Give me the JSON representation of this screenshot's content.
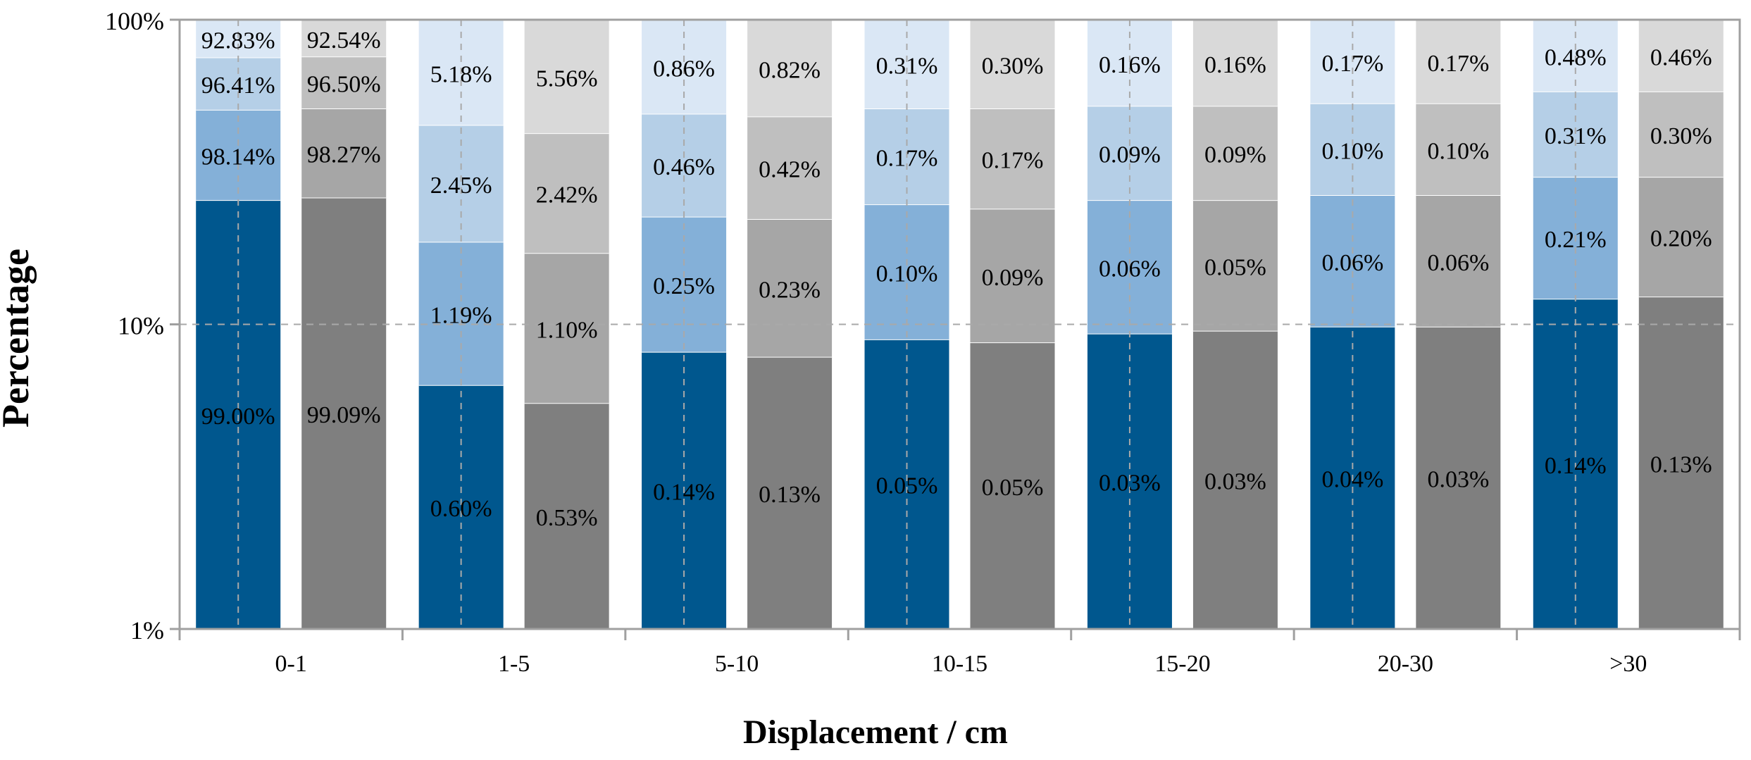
{
  "chart_data": {
    "type": "bar",
    "stacked": true,
    "yscale": "log",
    "ylim": [
      "1%",
      "100%"
    ],
    "ylabel": "Percentage",
    "xlabel": "Displacement / cm",
    "y_ticks": [
      "1%",
      "10%",
      "100%"
    ],
    "grid": "dashed vertical lines at bar centers; dashed line at 10%",
    "legend": "none",
    "categories": [
      "0-1",
      "1-5",
      "5-10",
      "10-15",
      "15-20",
      "20-30",
      ">30"
    ],
    "groups": [
      {
        "category": "0-1",
        "bars": [
          {
            "palette": "blue",
            "tops": [
              25.5,
              50.5,
              75,
              99.5
            ],
            "labels": [
              "99.00%",
              "98.14%",
              "96.41%",
              "92.83%"
            ]
          },
          {
            "palette": "gray",
            "tops": [
              26,
              51,
              75.5,
              99.5
            ],
            "labels": [
              "99.09%",
              "98.27%",
              "96.50%",
              "92.54%"
            ]
          }
        ]
      },
      {
        "category": "1-5",
        "bars": [
          {
            "palette": "blue",
            "tops": [
              6.3,
              18.6,
              45,
              99.5
            ],
            "labels": [
              "0.60%",
              "1.19%",
              "2.45%",
              "5.18%"
            ]
          },
          {
            "palette": "gray",
            "tops": [
              5.5,
              17.1,
              42.3,
              99.5
            ],
            "labels": [
              "0.53%",
              "1.10%",
              "2.42%",
              "5.56%"
            ]
          }
        ]
      },
      {
        "category": "5-10",
        "bars": [
          {
            "palette": "blue",
            "tops": [
              8.1,
              22.5,
              49,
              99.5
            ],
            "labels": [
              "0.14%",
              "0.25%",
              "0.46%",
              "0.86%"
            ]
          },
          {
            "palette": "gray",
            "tops": [
              7.8,
              22.1,
              48,
              99.5
            ],
            "labels": [
              "0.13%",
              "0.23%",
              "0.42%",
              "0.82%"
            ]
          }
        ]
      },
      {
        "category": "10-15",
        "bars": [
          {
            "palette": "blue",
            "tops": [
              8.9,
              24.7,
              51,
              99.5
            ],
            "labels": [
              "0.05%",
              "0.10%",
              "0.17%",
              "0.31%"
            ]
          },
          {
            "palette": "gray",
            "tops": [
              8.7,
              23.9,
              51,
              99.5
            ],
            "labels": [
              "0.05%",
              "0.09%",
              "0.17%",
              "0.30%"
            ]
          }
        ]
      },
      {
        "category": "15-20",
        "bars": [
          {
            "palette": "blue",
            "tops": [
              9.3,
              25.5,
              52,
              99.5
            ],
            "labels": [
              "0.03%",
              "0.06%",
              "0.09%",
              "0.16%"
            ]
          },
          {
            "palette": "gray",
            "tops": [
              9.5,
              25.5,
              52,
              99.5
            ],
            "labels": [
              "0.03%",
              "0.05%",
              "0.09%",
              "0.16%"
            ]
          }
        ]
      },
      {
        "category": "20-30",
        "bars": [
          {
            "palette": "blue",
            "tops": [
              9.8,
              26.5,
              53,
              99.5
            ],
            "labels": [
              "0.04%",
              "0.06%",
              "0.10%",
              "0.17%"
            ]
          },
          {
            "palette": "gray",
            "tops": [
              9.8,
              26.5,
              53,
              99.5
            ],
            "labels": [
              "0.03%",
              "0.06%",
              "0.10%",
              "0.17%"
            ]
          }
        ]
      },
      {
        "category": ">30",
        "bars": [
          {
            "palette": "blue",
            "tops": [
              12.1,
              30.4,
              58,
              99.5
            ],
            "labels": [
              "0.14%",
              "0.21%",
              "0.31%",
              "0.48%"
            ]
          },
          {
            "palette": "gray",
            "tops": [
              12.3,
              30.4,
              58,
              99.5
            ],
            "labels": [
              "0.13%",
              "0.20%",
              "0.30%",
              "0.46%"
            ]
          }
        ]
      }
    ],
    "colors": {
      "blue": [
        "#00578e",
        "#84b0d8",
        "#b5cfe7",
        "#dae7f5"
      ],
      "gray": [
        "#7f7f7f",
        "#a6a6a6",
        "#bfbfbf",
        "#d9d9d9"
      ],
      "axis": "#a0a0a0",
      "grid": "#a9a9a9",
      "text": "#000000"
    }
  }
}
